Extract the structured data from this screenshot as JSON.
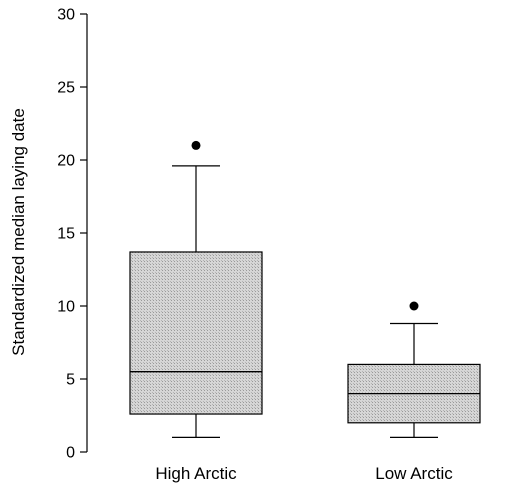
{
  "chart_data": {
    "type": "box",
    "title": "",
    "xlabel": "",
    "ylabel": "Standardized median laying date",
    "ylim": [
      0,
      30
    ],
    "yticks": [
      0,
      5,
      10,
      15,
      20,
      25,
      30
    ],
    "grid": false,
    "categories": [
      "High Arctic",
      "Low Arctic"
    ],
    "boxes": [
      {
        "category": "High Arctic",
        "whisker_low": 1.0,
        "q1": 2.6,
        "median": 5.5,
        "q3": 13.7,
        "whisker_high": 19.6,
        "outliers": [
          21.0
        ]
      },
      {
        "category": "Low Arctic",
        "whisker_low": 1.0,
        "q1": 2.0,
        "median": 4.0,
        "q3": 6.0,
        "whisker_high": 8.8,
        "outliers": [
          10.0
        ]
      }
    ],
    "colors": {
      "box_fill": "#cfcfcf",
      "stroke": "#000000",
      "outlier": "#000000"
    }
  }
}
